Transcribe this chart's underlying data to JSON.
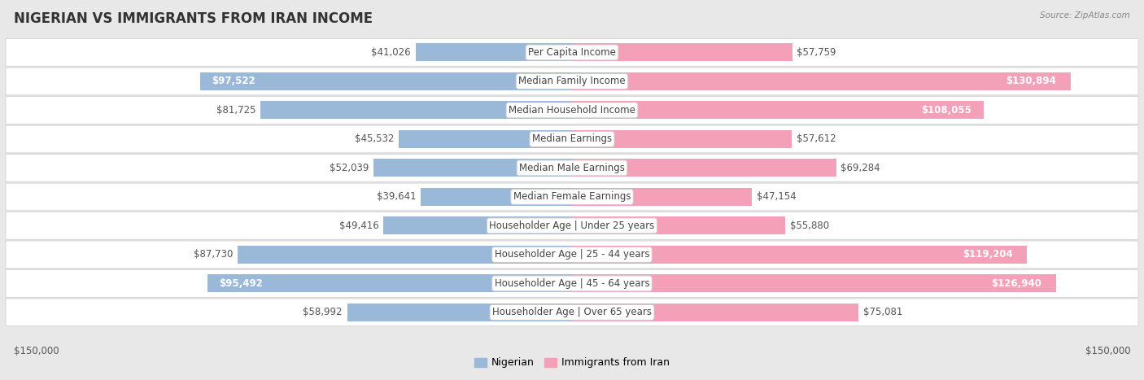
{
  "title": "NIGERIAN VS IMMIGRANTS FROM IRAN INCOME",
  "source": "Source: ZipAtlas.com",
  "categories": [
    "Per Capita Income",
    "Median Family Income",
    "Median Household Income",
    "Median Earnings",
    "Median Male Earnings",
    "Median Female Earnings",
    "Householder Age | Under 25 years",
    "Householder Age | 25 - 44 years",
    "Householder Age | 45 - 64 years",
    "Householder Age | Over 65 years"
  ],
  "nigerian": [
    41026,
    97522,
    81725,
    45532,
    52039,
    39641,
    49416,
    87730,
    95492,
    58992
  ],
  "iran": [
    57759,
    130894,
    108055,
    57612,
    69284,
    47154,
    55880,
    119204,
    126940,
    75081
  ],
  "nigerian_inside": [
    false,
    true,
    false,
    false,
    false,
    false,
    false,
    false,
    true,
    false
  ],
  "iran_inside": [
    false,
    true,
    true,
    false,
    false,
    false,
    false,
    true,
    true,
    false
  ],
  "max_val": 150000,
  "nigerian_color": "#9ab8d8",
  "iran_color": "#f4a0b8",
  "bg_color": "#e8e8e8",
  "row_bg": "#ffffff",
  "label_fontsize": 8.5,
  "value_fontsize": 8.5,
  "title_fontsize": 12
}
